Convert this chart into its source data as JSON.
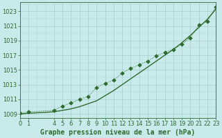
{
  "x_smooth": [
    0,
    1,
    4,
    5,
    6,
    7,
    8,
    9,
    10,
    11,
    12,
    13,
    14,
    15,
    16,
    17,
    18,
    19,
    20,
    21,
    22,
    23
  ],
  "y_smooth": [
    1009.0,
    1009.1,
    1009.3,
    1009.5,
    1009.7,
    1010.0,
    1010.4,
    1010.8,
    1011.5,
    1012.2,
    1013.0,
    1013.8,
    1014.6,
    1015.4,
    1016.2,
    1017.0,
    1017.8,
    1018.7,
    1019.7,
    1020.8,
    1021.9,
    1023.3
  ],
  "x_marked": [
    0,
    1,
    4,
    5,
    6,
    7,
    8,
    9,
    10,
    11,
    12,
    13,
    14,
    15,
    16,
    17,
    18,
    19,
    20,
    21,
    22,
    23
  ],
  "y_marked": [
    1009.1,
    1009.3,
    1009.5,
    1010.1,
    1010.5,
    1011.0,
    1011.4,
    1012.6,
    1013.2,
    1013.6,
    1014.6,
    1015.2,
    1015.7,
    1016.2,
    1016.9,
    1017.4,
    1017.8,
    1018.5,
    1019.4,
    1021.1,
    1021.6,
    1023.6
  ],
  "xlim": [
    0,
    23
  ],
  "ylim": [
    1008.5,
    1024.2
  ],
  "yticks": [
    1009,
    1011,
    1013,
    1015,
    1017,
    1019,
    1021,
    1023
  ],
  "xticks": [
    0,
    1,
    4,
    5,
    6,
    7,
    8,
    9,
    10,
    11,
    12,
    13,
    14,
    15,
    16,
    17,
    18,
    19,
    20,
    21,
    22,
    23
  ],
  "xlabel": "Graphe pression niveau de la mer (hPa)",
  "line_color": "#2d6a2d",
  "marker_color": "#2d6a2d",
  "bg_color": "#c8eaea",
  "grid_color": "#a8cece",
  "text_color": "#2d6a2d",
  "xlabel_fontsize": 7.0,
  "tick_fontsize": 6.0
}
